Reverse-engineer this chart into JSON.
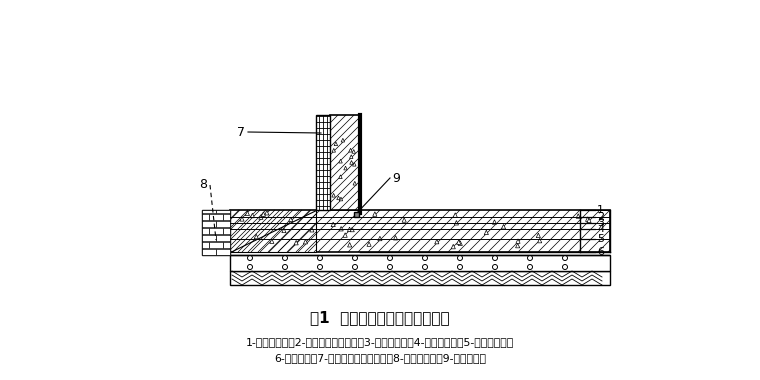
{
  "title": "图1  地下室聚氨酯涂膜防水构造",
  "caption_line1": "1-混凝土底板；2-细石混凝土保护层；3-涂膜防水层；4-砂浆找平层；5-混凝土垫层；",
  "caption_line2": "6-素土夯实；7-挤塑聚苯乙烯泡沫板；8-砖砌模板墙；9-钢板止水带",
  "bg_color": "#ffffff",
  "lc": "#000000",
  "label_7": "7",
  "label_8": "8",
  "label_9": "9"
}
